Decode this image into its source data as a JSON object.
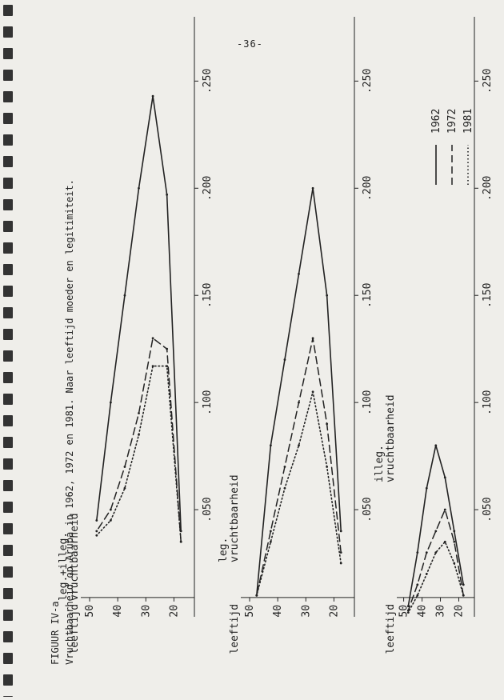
{
  "page_number": "-36-",
  "figure": {
    "label": "FIGUUR IV-a",
    "caption": "Vruchtbaarheid op Aruba in 1962, 1972 en 1981. Naar leeftijd moeder en legitimiteit."
  },
  "legend": {
    "entries": [
      "1962",
      "1972",
      "1981"
    ],
    "placement": "top-right"
  },
  "chart_data": [
    {
      "type": "line",
      "ylabel": "leg.+illeg. vruchtbaarheid",
      "xlabel": "leeftijd",
      "x_ticks": [
        "20",
        "30",
        "40",
        "50"
      ],
      "y_ticks": [
        ".050",
        ".100",
        ".150",
        ".200",
        ".250"
      ],
      "xlim": [
        15,
        52
      ],
      "ylim": [
        0.0,
        0.28
      ],
      "series": [
        {
          "name": "1962",
          "style": "solid",
          "x": [
            17.5,
            22.5,
            27.5,
            32.5,
            37.5,
            42.5,
            47.5
          ],
          "y": [
            0.04,
            0.197,
            0.243,
            0.2,
            0.15,
            0.1,
            0.045
          ]
        },
        {
          "name": "1972",
          "style": "dashed",
          "x": [
            17.5,
            22.5,
            27.5,
            32.5,
            37.5,
            42.5,
            47.5
          ],
          "y": [
            0.035,
            0.125,
            0.13,
            0.095,
            0.07,
            0.05,
            0.04
          ]
        },
        {
          "name": "1981",
          "style": "dotted",
          "x": [
            17.5,
            22.5,
            27.5,
            32.5,
            37.5,
            42.5,
            47.5
          ],
          "y": [
            0.035,
            0.117,
            0.117,
            0.085,
            0.06,
            0.045,
            0.038
          ]
        }
      ]
    },
    {
      "type": "line",
      "ylabel": "leg. vruchtbaarheid",
      "xlabel": "leeftijd",
      "x_ticks": [
        "20",
        "30",
        "40",
        "50"
      ],
      "y_ticks": [
        ".050",
        ".100",
        ".150",
        ".200",
        ".250"
      ],
      "xlim": [
        15,
        52
      ],
      "ylim": [
        0.0,
        0.28
      ],
      "series": [
        {
          "name": "1962",
          "style": "solid",
          "x": [
            17.5,
            22.5,
            27.5,
            32.5,
            37.5,
            42.5,
            47.5
          ],
          "y": [
            0.04,
            0.15,
            0.2,
            0.16,
            0.12,
            0.08,
            0.01
          ]
        },
        {
          "name": "1972",
          "style": "dashed",
          "x": [
            17.5,
            22.5,
            27.5,
            32.5,
            37.5,
            42.5,
            47.5
          ],
          "y": [
            0.03,
            0.09,
            0.13,
            0.1,
            0.07,
            0.04,
            0.01
          ]
        },
        {
          "name": "1981",
          "style": "dotted",
          "x": [
            17.5,
            22.5,
            27.5,
            32.5,
            37.5,
            42.5,
            47.5
          ],
          "y": [
            0.025,
            0.07,
            0.105,
            0.08,
            0.06,
            0.035,
            0.01
          ]
        }
      ]
    },
    {
      "type": "line",
      "ylabel": "illeg. vruchtbaarheid",
      "xlabel": "leeftijd",
      "x_ticks": [
        "20",
        "30",
        "40",
        "50"
      ],
      "y_ticks": [
        ".050",
        ".100",
        ".150",
        ".200",
        ".250"
      ],
      "xlim": [
        15,
        52
      ],
      "ylim": [
        0.0,
        0.28
      ],
      "series": [
        {
          "name": "1962",
          "style": "solid",
          "x": [
            17.5,
            22.5,
            27.5,
            32.5,
            37.5,
            42.5,
            47.5
          ],
          "y": [
            0.015,
            0.04,
            0.065,
            0.08,
            0.06,
            0.03,
            0.005
          ]
        },
        {
          "name": "1972",
          "style": "dashed",
          "x": [
            17.5,
            22.5,
            27.5,
            32.5,
            37.5,
            42.5,
            47.5
          ],
          "y": [
            0.01,
            0.035,
            0.05,
            0.04,
            0.03,
            0.015,
            0.003
          ]
        },
        {
          "name": "1981",
          "style": "dotted",
          "x": [
            17.5,
            22.5,
            27.5,
            32.5,
            37.5,
            42.5,
            47.5
          ],
          "y": [
            0.01,
            0.025,
            0.035,
            0.03,
            0.02,
            0.01,
            0.002
          ]
        }
      ]
    }
  ]
}
